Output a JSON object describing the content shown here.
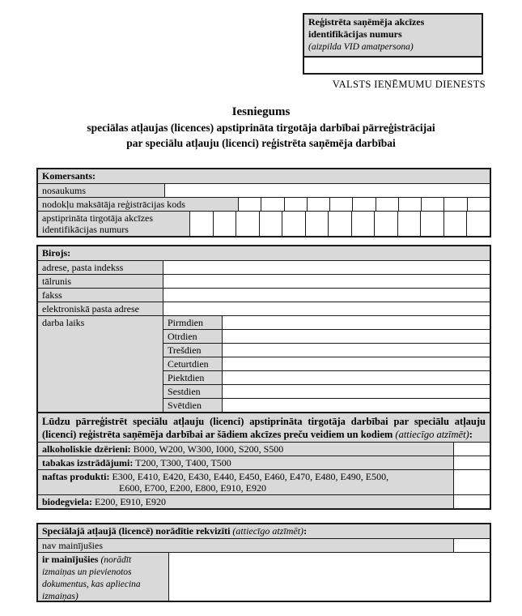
{
  "top_box": {
    "line1": "Reģistrēta saņēmēja akcīzes",
    "line2": "identifikācijas numurs",
    "note": "(aizpilda VID amatpersona)",
    "value": ""
  },
  "agency": "VALSTS IEŅĒMUMU DIENESTS",
  "title": {
    "line1": "Iesniegums",
    "line2": "speciālas atļaujas (licences) apstiprināta tirgotāja darbībai pārreģistrācijai",
    "line3": "par speciālu atļauju (licenci) reģistrēta saņēmēja darbībai"
  },
  "merchant": {
    "header": "Komersants:",
    "name_label": "nosaukums",
    "name_value": "",
    "tax_code_label": "nodokļu maksātāja reģistrācijas kods",
    "tax_code_cells": 11,
    "excise_id_label": "apstiprināta tirgotāja akcīzes identifikācijas numurs",
    "excise_id_cells": 13
  },
  "office": {
    "header": "Birojs:",
    "address_label": "adrese, pasta indekss",
    "phone_label": "tālrunis",
    "fax_label": "fakss",
    "email_label": "elektroniskā pasta adrese",
    "hours_label": "darba laiks",
    "days": [
      "Pirmdien",
      "Otrdien",
      "Trešdien",
      "Ceturtdien",
      "Piektdien",
      "Sestdien",
      "Svētdien"
    ]
  },
  "reregistration": {
    "header_bold": "Lūdzu pārreģistrēt speciālu atļauju (licenci) apstiprināta tirgotāja darbībai par speciālu atļauju (licenci) reģistrēta saņēmēja darbībai ar šādiem akcīzes preču veidiem un kodiem ",
    "header_italic": "(attiecīgo atzīmēt)",
    "header_colon": ":",
    "rows": [
      {
        "label": "alkoholiskie dzērieni:",
        "codes": "B000, W200, W300, I000, S200, S500",
        "codes2": ""
      },
      {
        "label": "tabakas izstrādājumi:",
        "codes": "T200, T300, T400, T500",
        "codes2": ""
      },
      {
        "label": "naftas produkti:",
        "codes": "E300, E410, E420, E430, E440, E450, E460, E470, E480, E490, E500,",
        "codes2": "E600, E700, E200, E800, E910, E920"
      },
      {
        "label": "biodegviela:",
        "codes": "E200, E910, E920",
        "codes2": ""
      }
    ]
  },
  "requisites": {
    "header_bold": "Speciālajā atļaujā (licencē) norādītie rekvizīti ",
    "header_italic": "(attiecīgo atzīmēt)",
    "header_colon": ":",
    "not_changed_label": "nav mainījušies",
    "changed_bold": "ir mainījušies ",
    "changed_italic": "(norādīt izmaiņas un pievienotos dokumentus, kas apliecina izmaiņas)"
  }
}
